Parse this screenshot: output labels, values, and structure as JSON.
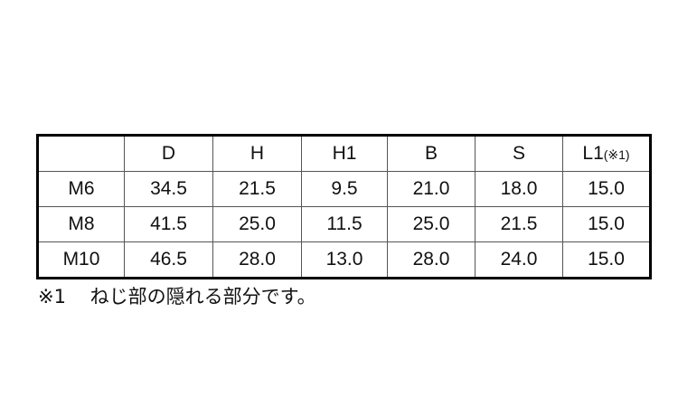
{
  "table": {
    "headers": [
      "",
      "D",
      "H",
      "H1",
      "B",
      "S",
      "L1"
    ],
    "header_note": "(※1)",
    "rows": [
      [
        "M6",
        "34.5",
        "21.5",
        "9.5",
        "21.0",
        "18.0",
        "15.0"
      ],
      [
        "M8",
        "41.5",
        "25.0",
        "11.5",
        "25.0",
        "21.5",
        "15.0"
      ],
      [
        "M10",
        "46.5",
        "28.0",
        "13.0",
        "28.0",
        "24.0",
        "15.0"
      ]
    ]
  },
  "footnote": {
    "mark": "※1",
    "text": "ねじ部の隠れる部分です。"
  }
}
